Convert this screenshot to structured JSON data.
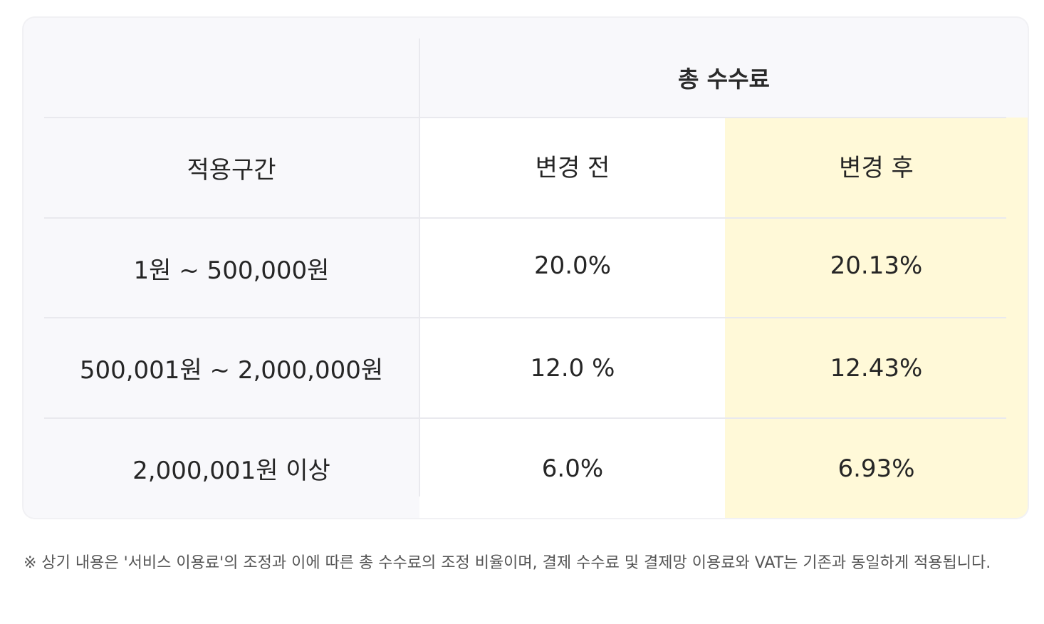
{
  "table": {
    "group_header": "총 수수료",
    "col_range": "적용구간",
    "col_before": "변경 전",
    "col_after": "변경 후",
    "rows": [
      {
        "range": "1원 ~ 500,000원",
        "before": "20.0%",
        "after": "20.13%"
      },
      {
        "range": "500,001원 ~ 2,000,000원",
        "before": "12.0 %",
        "after": "12.43%"
      },
      {
        "range": "2,000,001원 이상",
        "before": "6.0%",
        "after": "6.93%"
      }
    ]
  },
  "footnote": "※ 상기 내용은 '서비스 이용료'의 조정과 이에 따른 총 수수료의 조정 비율이며, 결제 수수료 및 결제망 이용료와 VAT는 기존과 동일하게 적용됩니다.",
  "colors": {
    "card_bg": "#f8f8fb",
    "before_bg": "#ffffff",
    "after_highlight": "#fff9d8",
    "divider": "#e9e9ee"
  }
}
